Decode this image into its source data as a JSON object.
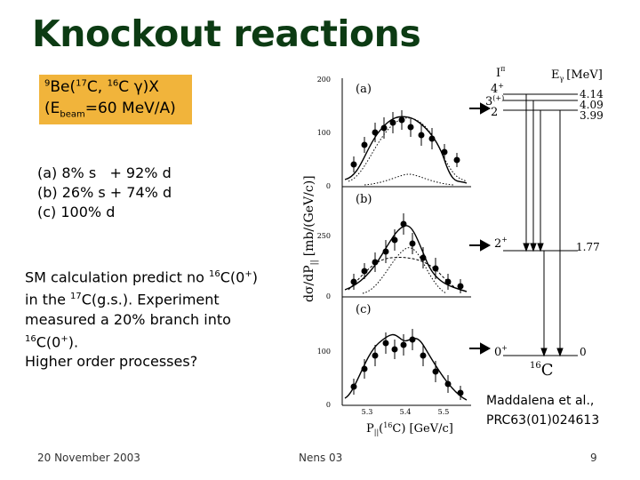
{
  "slide": {
    "title": "Knockout reactions",
    "reaction": {
      "target_mass": "9",
      "target": "Be(",
      "proj_mass": "17",
      "proj": "C, ",
      "frag_mass": "16",
      "frag": "C ",
      "gamma": "γ",
      "tail": ")X",
      "beam_prefix": "(E",
      "beam_sub": "beam",
      "beam_suffix": "=60 MeV/A)"
    },
    "fits": [
      "(a) 8% s   + 92% d",
      "(b) 26% s + 74% d",
      "(c) 100% d"
    ],
    "sm_text": {
      "p1": "SM calculation predict no ",
      "p1_sup": "16",
      "p1_b": "C(0",
      "p1_sup2": "+",
      "p1_c": ")",
      "p2a": "in the ",
      "p2_sup": "17",
      "p2b": "C(g.s.). Experiment",
      "p3": "measured a 20% branch into",
      "p4_sup": "16",
      "p4a": "C(0",
      "p4_sup2": "+",
      "p4b": ").",
      "p5": "Higher order processes?"
    },
    "citation": [
      "Maddalena et al.,",
      "PRC63(01)024613"
    ],
    "footer": {
      "date": "20 November 2003",
      "conference": "Nens 03",
      "page": "9"
    }
  },
  "figure": {
    "y_axis_label": "dσ/dP",
    "y_axis_sub": "||",
    "y_axis_unit": "[mb/(GeV/c)]",
    "x_axis_label": "P",
    "x_axis_sub": "||",
    "x_axis_iso": "16",
    "x_axis_rest": "C) [GeV/c]",
    "x_axis_paren": "(",
    "x_ticks": [
      "5.3",
      "5.4",
      "5.5"
    ],
    "panels": [
      {
        "label": "(a)",
        "ticks": [
          "200",
          "100",
          "0"
        ]
      },
      {
        "label": "(b)",
        "ticks": [
          "250",
          "0"
        ]
      },
      {
        "label": "(c)",
        "ticks": [
          "100",
          "0"
        ]
      }
    ],
    "level_scheme": {
      "header_ipi": "I",
      "header_pi": "π",
      "header_e": "E",
      "header_gamma": "γ",
      "header_unit": "[MeV]",
      "levels": [
        {
          "spin": "4",
          "parity": "+",
          "energy": "4.14"
        },
        {
          "spin": "3",
          "parity": "(+)",
          "energy": "4.09"
        },
        {
          "spin": "2",
          "parity": "",
          "energy": "3.99"
        },
        {
          "spin": "2",
          "parity": "+",
          "energy": "1.77"
        },
        {
          "spin": "0",
          "parity": "+",
          "energy": "0"
        }
      ],
      "nucleus_mass": "16",
      "nucleus": "C"
    }
  }
}
